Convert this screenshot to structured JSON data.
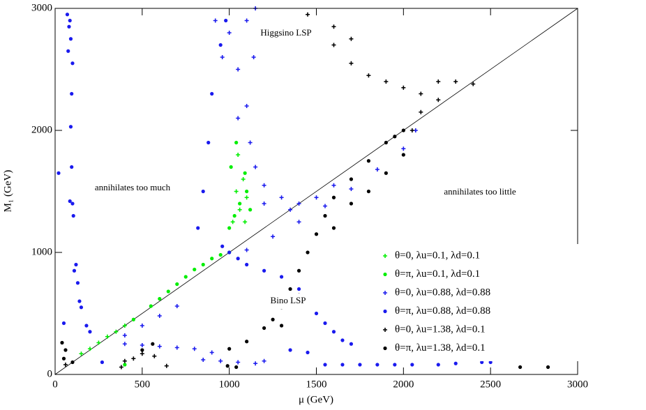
{
  "chart_data": {
    "type": "scatter",
    "xlabel": "μ (GeV)",
    "ylabel": "M₁ (GeV)",
    "xlim": [
      0,
      3000
    ],
    "ylim": [
      0,
      3000
    ],
    "xticks": [
      0,
      500,
      1000,
      1500,
      2000,
      2500,
      3000
    ],
    "yticks": [
      0,
      1000,
      2000,
      3000
    ],
    "legend": "lower right",
    "annotations": [
      "Higgsino LSP",
      "Bino LSP",
      "annihilates too much",
      "annihilates too little"
    ],
    "series": [
      {
        "name": "θ=0, λu=0.1, λd=0.1",
        "color": "#00ee00",
        "marker": "plus",
        "x": [
          150,
          200,
          250,
          300,
          350,
          400,
          1050,
          1080,
          1040,
          1100,
          1060,
          1020,
          1090
        ],
        "y": [
          170,
          210,
          260,
          310,
          350,
          400,
          1800,
          1600,
          1500,
          1450,
          1350,
          1250,
          1250
        ]
      },
      {
        "name": "θ=π, λu=0.1, λd=0.1",
        "color": "#00ee00",
        "marker": "circle",
        "x": [
          400,
          450,
          550,
          600,
          650,
          700,
          750,
          800,
          850,
          900,
          950,
          1000,
          1000,
          1030,
          1060,
          1100,
          1010,
          1040,
          1090,
          1120
        ],
        "y": [
          80,
          450,
          560,
          620,
          680,
          740,
          800,
          860,
          900,
          950,
          980,
          1000,
          1200,
          1300,
          1400,
          1500,
          1700,
          1900,
          1650,
          1350
        ]
      },
      {
        "name": "θ=0, λu=0.88, λd=0.88",
        "color": "#1a1aee",
        "marker": "plus",
        "x": [
          920,
          960,
          1000,
          1050,
          1100,
          1150,
          1140,
          1100,
          1050,
          1120,
          1150,
          1200,
          1300,
          1400,
          1500,
          1600,
          1200,
          1350,
          1100,
          1250,
          1400,
          1550,
          1700,
          1850,
          2000,
          2070,
          400,
          500,
          600,
          700,
          400,
          500,
          600,
          700,
          800,
          900,
          850,
          950,
          1050,
          1150,
          1200
        ],
        "y": [
          2900,
          2600,
          2800,
          2500,
          2900,
          3000,
          2600,
          2200,
          2100,
          1900,
          1700,
          1550,
          1450,
          1400,
          1450,
          1550,
          1400,
          1350,
          1020,
          1130,
          1250,
          1380,
          1520,
          1680,
          1850,
          2000,
          320,
          400,
          480,
          560,
          250,
          240,
          230,
          220,
          210,
          180,
          120,
          110,
          100,
          90,
          110
        ]
      },
      {
        "name": "θ=π, λu=0.88, λd=0.88",
        "color": "#1a1aee",
        "marker": "circle",
        "x": [
          70,
          80,
          90,
          75,
          85,
          100,
          95,
          90,
          95,
          85,
          100,
          105,
          110,
          120,
          130,
          140,
          150,
          180,
          200,
          270,
          820,
          850,
          880,
          900,
          950,
          980,
          960,
          1000,
          1050,
          1100,
          1200,
          1300,
          1400,
          1450,
          1500,
          1550,
          1600,
          1650,
          1700,
          1350,
          1450,
          1550,
          1650,
          1750,
          1850,
          1950,
          2050,
          2200,
          2300,
          2450,
          2500,
          20,
          50
        ],
        "y": [
          2950,
          2850,
          2750,
          2650,
          2900,
          2550,
          2300,
          2030,
          1700,
          1420,
          1400,
          1300,
          850,
          900,
          750,
          600,
          550,
          400,
          350,
          100,
          1200,
          1500,
          1900,
          2300,
          2700,
          2900,
          1050,
          1000,
          950,
          900,
          850,
          800,
          700,
          600,
          500,
          420,
          350,
          280,
          250,
          200,
          180,
          80,
          80,
          80,
          80,
          80,
          80,
          80,
          90,
          100,
          100,
          1650,
          420
        ]
      },
      {
        "name": "θ=0, λu=1.38, λd=0.1",
        "color": "#000000",
        "marker": "plus",
        "x": [
          1450,
          1500,
          1600,
          1700,
          1800,
          1900,
          2000,
          2100,
          2200,
          2300,
          2400,
          2200,
          2100,
          2050,
          1600,
          1700,
          60,
          400,
          450,
          500,
          570,
          640,
          380
        ],
        "y": [
          2950,
          2800,
          2700,
          2550,
          2450,
          2400,
          2350,
          2300,
          2400,
          2400,
          2380,
          2250,
          2150,
          2000,
          2850,
          2750,
          80,
          110,
          130,
          170,
          150,
          70,
          60
        ]
      },
      {
        "name": "θ=π, λu=1.38, λd=0.1",
        "color": "#000000",
        "marker": "circle",
        "x": [
          1000,
          1100,
          1200,
          1300,
          1350,
          1400,
          1450,
          1500,
          1550,
          1600,
          1700,
          1800,
          1900,
          1950,
          2000,
          1250,
          1300,
          1400,
          1600,
          1700,
          1800,
          1900,
          2000,
          40,
          60,
          50,
          100,
          500,
          560,
          2670,
          2830,
          990,
          1040
        ],
        "y": [
          210,
          270,
          380,
          550,
          700,
          850,
          1000,
          1150,
          1300,
          1450,
          1600,
          1750,
          1900,
          1950,
          2000,
          450,
          400,
          650,
          1200,
          1400,
          1500,
          1650,
          1800,
          260,
          200,
          130,
          100,
          200,
          250,
          60,
          60,
          70,
          60
        ]
      }
    ]
  }
}
